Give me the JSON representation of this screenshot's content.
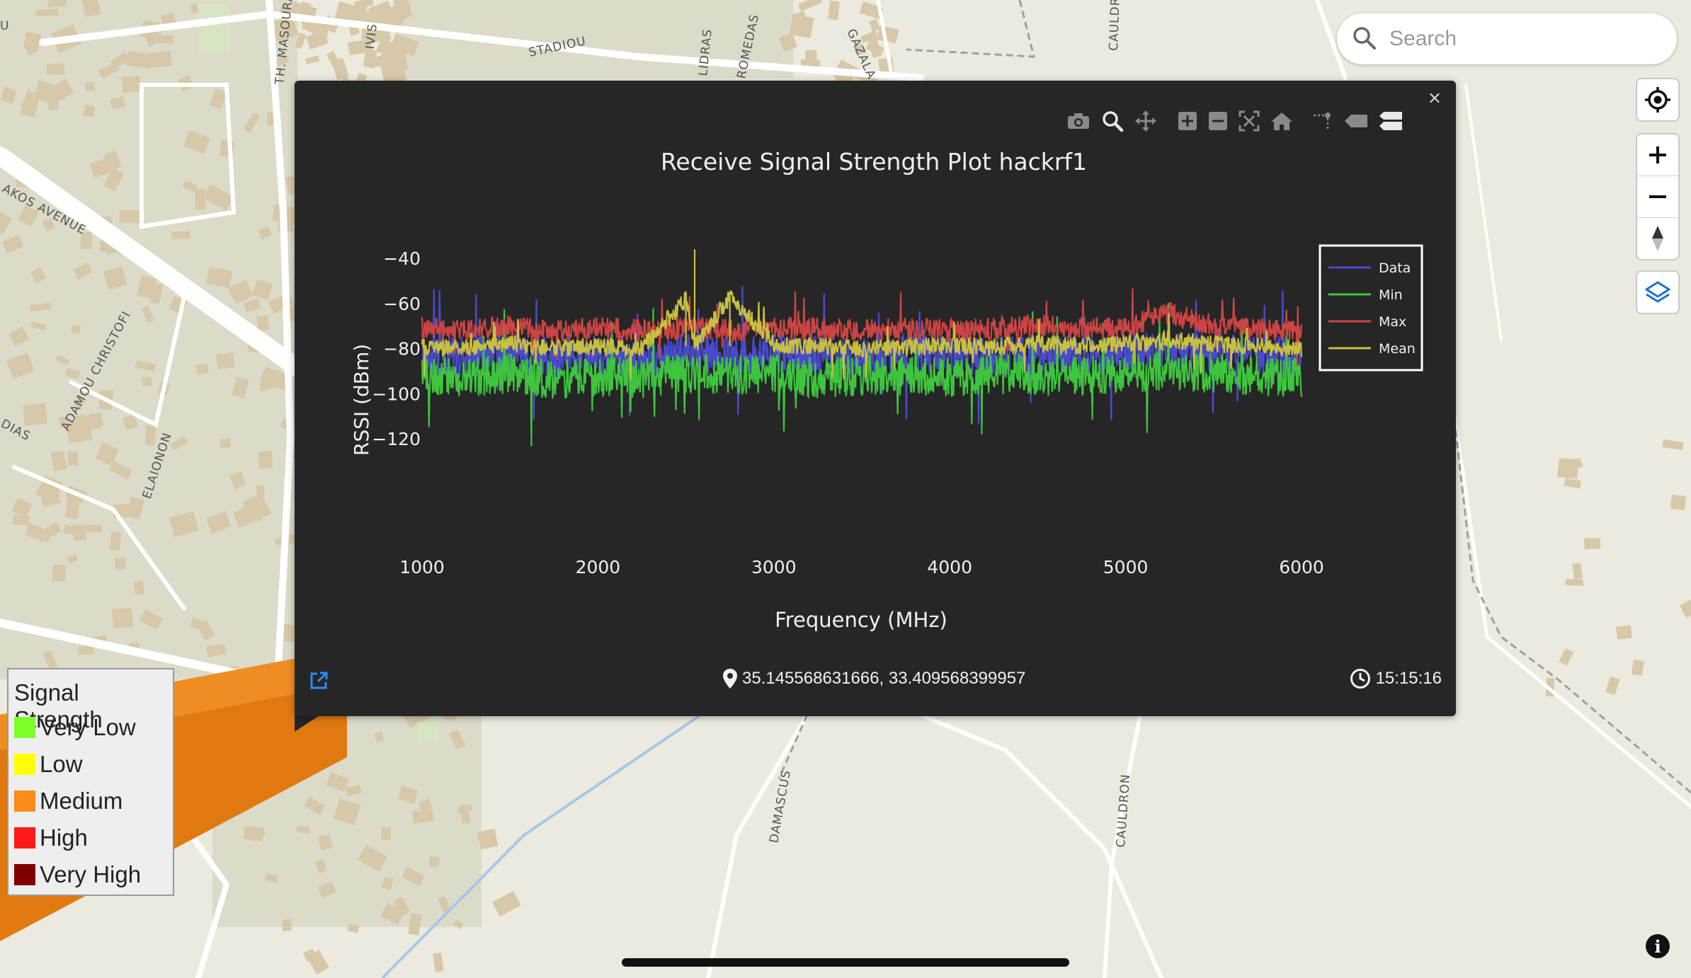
{
  "map": {
    "streets": [
      "STADIOU",
      "TH. MASOURA",
      "IVIS",
      "LIDRAS",
      "ROMEDAS",
      "GAZALA",
      "CAULDR",
      "AKOS AVENUE",
      "ADAMOU CHRISTOFI",
      "ELAIONON",
      "DAMASCUS",
      "CAULDRON",
      "DIAS",
      "U"
    ]
  },
  "search": {
    "placeholder": "Search",
    "icon": "search-icon"
  },
  "controls": {
    "locate": "locate-icon",
    "zoom_in": "plus-icon",
    "zoom_out": "minus-icon",
    "compass": "compass-icon",
    "layers": "layers-icon"
  },
  "legend": {
    "title": "Signal Strength",
    "items": [
      {
        "label": "Very Low",
        "color": "#7fff2a"
      },
      {
        "label": "Low",
        "color": "#ffff00"
      },
      {
        "label": "Medium",
        "color": "#ff8c1a"
      },
      {
        "label": "High",
        "color": "#ff1a1a"
      },
      {
        "label": "Very High",
        "color": "#800000"
      }
    ]
  },
  "popup": {
    "close": "×",
    "toolbar": [
      "camera-icon",
      "zoom-icon",
      "pan-icon",
      "zoom-in-icon",
      "zoom-out-icon",
      "autoscale-icon",
      "reset-axes-icon",
      "spike-lines-icon",
      "hover-closest-icon",
      "hover-compare-icon"
    ],
    "coordinates": "35.145568631666, 33.409568399957",
    "time": "15:15:16",
    "external_link": "external-link-icon"
  },
  "chart_data": {
    "type": "line",
    "title": "Receive Signal Strength Plot hackrf1",
    "xlabel": "Frequency (MHz)",
    "ylabel": "RSSI (dBm)",
    "xlim": [
      1000,
      6000
    ],
    "ylim": [
      -127,
      -33
    ],
    "xticks": [
      1000,
      2000,
      3000,
      4000,
      5000,
      6000
    ],
    "yticks": [
      -40,
      -60,
      -80,
      -100,
      -120
    ],
    "legend_position": "top-right",
    "grid": false,
    "series": [
      {
        "name": "Data",
        "color": "#4a4ad0",
        "x": [
          1000,
          1250,
          1500,
          1750,
          2000,
          2180,
          2250,
          2500,
          2750,
          3000,
          3250,
          3500,
          3750,
          4000,
          4250,
          4500,
          4750,
          5000,
          5250,
          5500,
          5750,
          6000
        ],
        "values": [
          -83,
          -84,
          -82,
          -84,
          -83,
          -110,
          -84,
          -82,
          -83,
          -82,
          -83,
          -84,
          -82,
          -83,
          -84,
          -82,
          -83,
          -82,
          -80,
          -82,
          -83,
          -84
        ]
      },
      {
        "name": "Min",
        "color": "#3ec43e",
        "x": [
          1000,
          1250,
          1500,
          1750,
          2000,
          2250,
          2500,
          2750,
          3000,
          3250,
          3500,
          3750,
          4000,
          4250,
          4500,
          4750,
          5000,
          5250,
          5500,
          5750,
          6000
        ],
        "values": [
          -92,
          -93,
          -91,
          -94,
          -92,
          -93,
          -91,
          -92,
          -91,
          -93,
          -92,
          -92,
          -93,
          -91,
          -92,
          -92,
          -91,
          -90,
          -91,
          -92,
          -93
        ]
      },
      {
        "name": "Max",
        "color": "#cc4444",
        "x": [
          1000,
          1250,
          1500,
          1750,
          2000,
          2250,
          2500,
          2750,
          3000,
          3250,
          3500,
          3750,
          4000,
          4250,
          4500,
          4750,
          5000,
          5250,
          5500,
          5750,
          6000
        ],
        "values": [
          -71,
          -72,
          -70,
          -72,
          -71,
          -72,
          -71,
          -72,
          -71,
          -71,
          -72,
          -71,
          -72,
          -71,
          -70,
          -71,
          -71,
          -64,
          -70,
          -71,
          -72
        ]
      },
      {
        "name": "Mean",
        "color": "#c8c040",
        "x": [
          1000,
          1250,
          1500,
          1750,
          2000,
          2250,
          2500,
          2550,
          2750,
          3000,
          3250,
          3500,
          3750,
          4000,
          4250,
          4500,
          4750,
          5000,
          5250,
          5500,
          5750,
          6000
        ],
        "values": [
          -79,
          -80,
          -78,
          -80,
          -79,
          -80,
          -79,
          -36,
          -79,
          -78,
          -79,
          -80,
          -79,
          -79,
          -79,
          -78,
          -79,
          -78,
          -76,
          -78,
          -79,
          -80
        ]
      }
    ]
  }
}
